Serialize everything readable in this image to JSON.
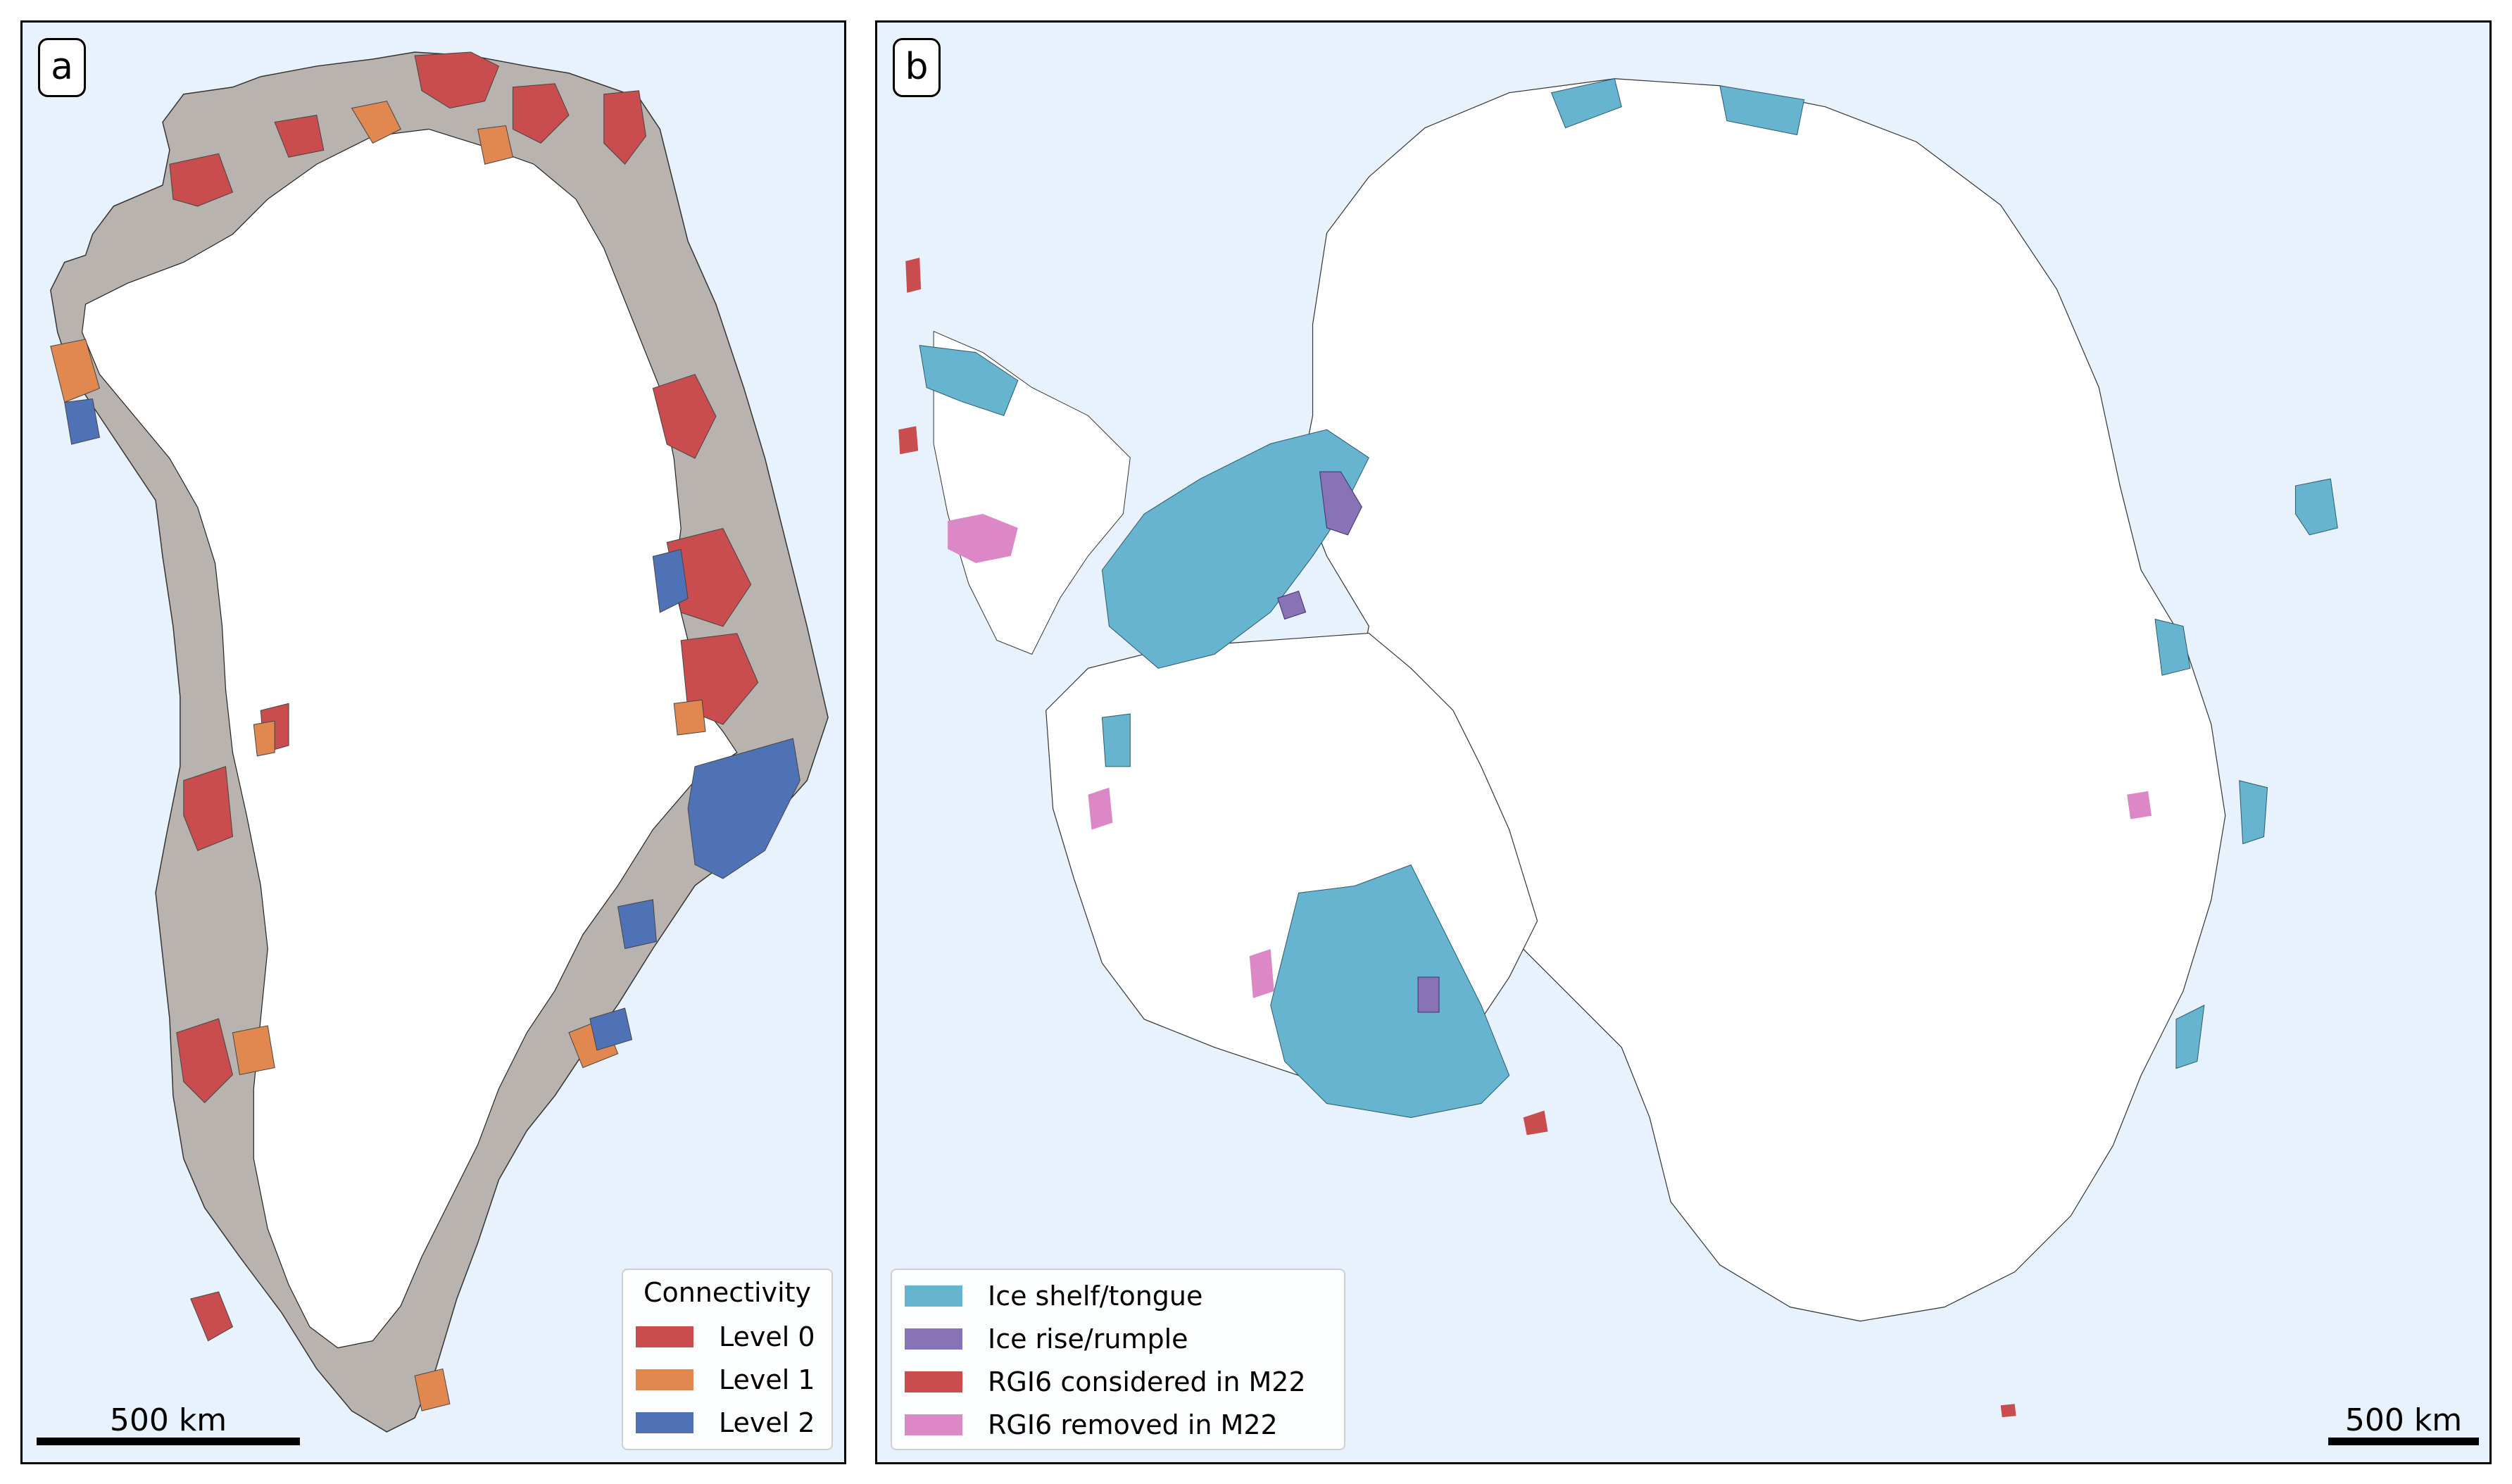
{
  "panels": {
    "a": {
      "label": "a",
      "legend": {
        "title": "Connectivity",
        "items": [
          {
            "label": "Level 0",
            "color": "#c94c4f"
          },
          {
            "label": "Level 1",
            "color": "#e08850"
          },
          {
            "label": "Level 2",
            "color": "#4f72b7"
          }
        ]
      },
      "scalebar": {
        "label": "500 km"
      },
      "colors": {
        "ocean": "#e8f2fd",
        "ice_sheet": "#ffffff",
        "land": "#b8b3ae",
        "coast": "#1a1a1a"
      }
    },
    "b": {
      "label": "b",
      "legend": {
        "items": [
          {
            "label": "Ice shelf/tongue",
            "color": "#66b4cf"
          },
          {
            "label": "Ice rise/rumple",
            "color": "#8773b6"
          },
          {
            "label": "RGI6 considered in M22",
            "color": "#c94c4f"
          },
          {
            "label": "RGI6 removed in M22",
            "color": "#dd88c6"
          }
        ]
      },
      "scalebar": {
        "label": "500 km"
      },
      "colors": {
        "ocean": "#e8f2fd",
        "ice_sheet": "#ffffff",
        "outcrop": "#111111"
      }
    }
  }
}
